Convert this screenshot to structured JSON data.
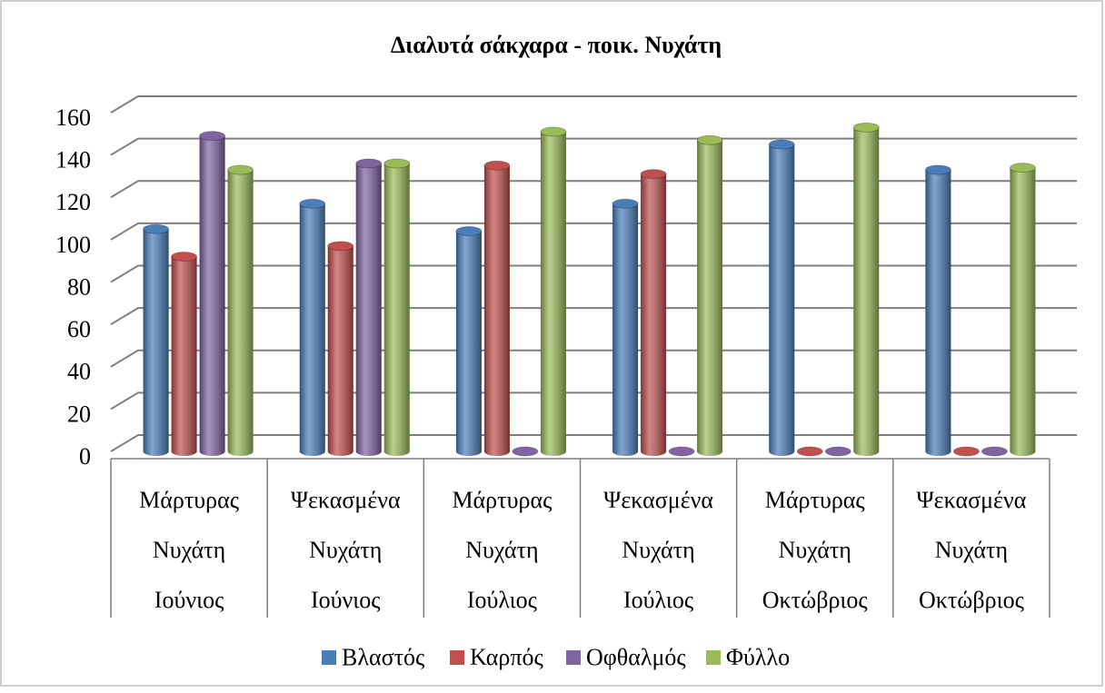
{
  "chart_data": {
    "type": "bar3d",
    "title": "Διαλυτά σάκχαρα - ποικ. Νυχάτη",
    "categories": [
      [
        "Μάρτυρας",
        "Νυχάτη",
        "Ιούνιος"
      ],
      [
        "Ψεκασμένα",
        "Νυχάτη",
        "Ιούνιος"
      ],
      [
        "Μάρτυρας",
        "Νυχάτη",
        "Ιούλιος"
      ],
      [
        "Ψεκασμένα",
        "Νυχάτη",
        "Ιούλιος"
      ],
      [
        "Μάρτυρας",
        "Νυχάτη",
        "Οκτώβριος"
      ],
      [
        "Ψεκασμένα",
        "Νυχάτη",
        "Οκτώβριος"
      ]
    ],
    "series": [
      {
        "name": "Βλαστός",
        "color": "#4a7ebb",
        "values": [
          105,
          117,
          104,
          117,
          145,
          133
        ]
      },
      {
        "name": "Καρπός",
        "color": "#c0504d",
        "values": [
          92,
          97,
          135,
          131,
          0,
          0
        ]
      },
      {
        "name": "Οφθαλμός",
        "color": "#8064a2",
        "values": [
          149,
          136,
          0,
          0,
          0,
          0
        ]
      },
      {
        "name": "Φύλλο",
        "color": "#9bbb59",
        "values": [
          133,
          136,
          151,
          147,
          153,
          134
        ]
      }
    ],
    "ylim": [
      0,
      160
    ],
    "yticks": [
      0,
      20,
      40,
      60,
      80,
      100,
      120,
      140,
      160
    ],
    "grid": true,
    "legend": "bottom"
  }
}
